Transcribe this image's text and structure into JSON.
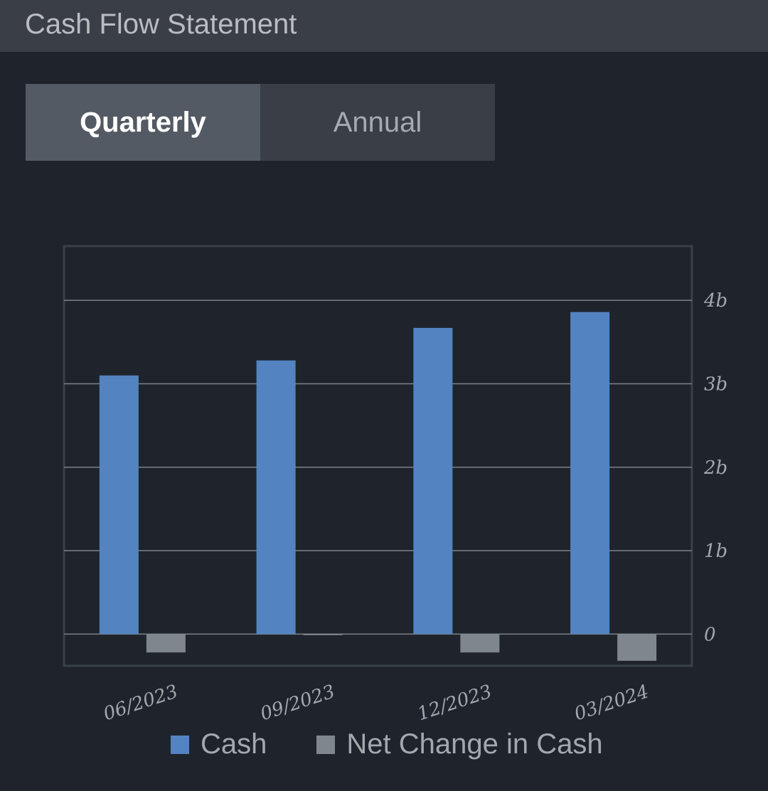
{
  "header": {
    "title": "Cash Flow Statement"
  },
  "tabs": [
    {
      "label": "Quarterly",
      "active": true
    },
    {
      "label": "Annual",
      "active": false
    }
  ],
  "colors": {
    "cash": "#5384c1",
    "net_change": "#7f868d",
    "grid": "#7d8287",
    "frame": "#3a4049"
  },
  "chart_data": {
    "type": "bar",
    "categories": [
      "06/2023",
      "09/2023",
      "12/2023",
      "03/2024"
    ],
    "series": [
      {
        "name": "Cash",
        "values": [
          3.1,
          3.28,
          3.67,
          3.86
        ]
      },
      {
        "name": "Net Change in Cash",
        "values": [
          -0.22,
          -0.01,
          -0.22,
          -0.32
        ]
      }
    ],
    "yticks": [
      {
        "value": 0,
        "label": "0"
      },
      {
        "value": 1,
        "label": "1b"
      },
      {
        "value": 2,
        "label": "2b"
      },
      {
        "value": 3,
        "label": "3b"
      },
      {
        "value": 4,
        "label": "4b"
      }
    ],
    "ylim": [
      -0.38,
      4.65
    ],
    "grid": true,
    "legend_position": "bottom",
    "title": "",
    "xlabel": "",
    "ylabel": ""
  }
}
